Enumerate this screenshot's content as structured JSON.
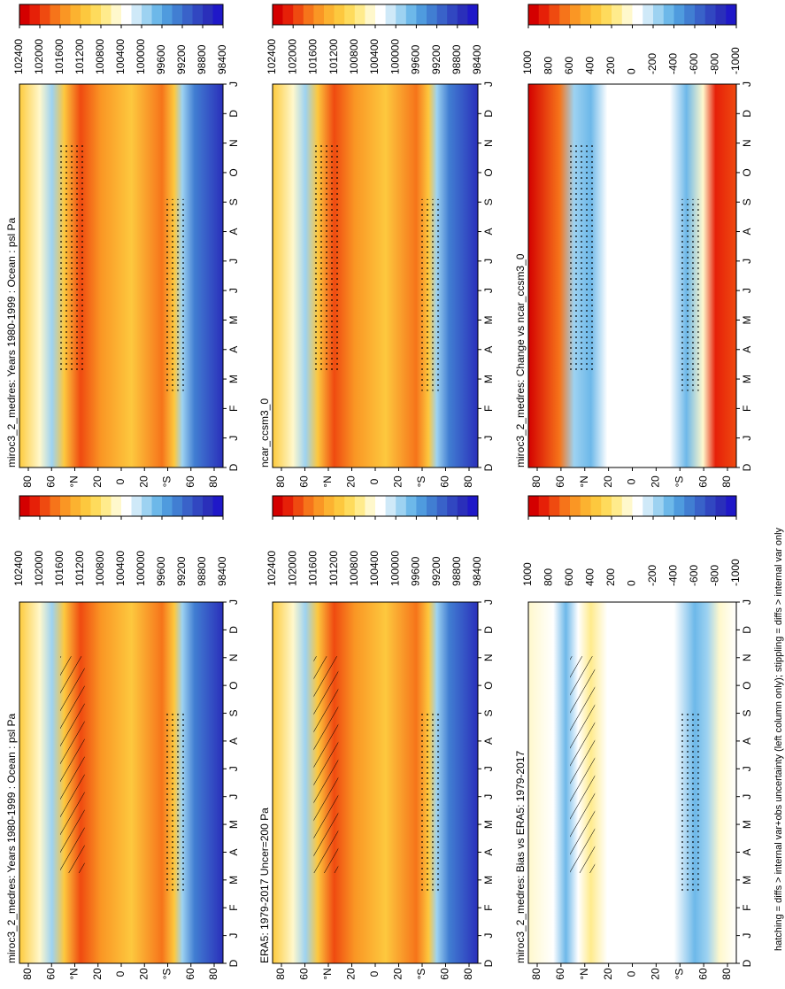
{
  "panels": [
    {
      "title": "miroc3_2_medres: Years 1980-1999 : Ocean : psl Pa",
      "colorbar_labels": [
        102400,
        102000,
        101600,
        101200,
        100800,
        100400,
        100000,
        99600,
        99200,
        98800,
        98400
      ]
    },
    {
      "title": "miroc3_2_medres: Years 1980-1999 : Ocean : psl Pa",
      "colorbar_labels": [
        102400,
        102000,
        101600,
        101200,
        100800,
        100400,
        100000,
        99600,
        99200,
        98800,
        98400
      ]
    },
    {
      "title": "ERA5: 1979-2017 Uncer=200 Pa",
      "colorbar_labels": [
        102400,
        102000,
        101600,
        101200,
        100800,
        100400,
        100000,
        99600,
        99200,
        98800,
        98400
      ]
    },
    {
      "title": "ncar_ccsm3_0",
      "colorbar_labels": [
        102400,
        102000,
        101600,
        101200,
        100800,
        100400,
        100000,
        99600,
        99200,
        98800,
        98400
      ]
    },
    {
      "title": "miroc3_2_medres: Bias vs ERA5: 1979-2017",
      "colorbar_labels": [
        1000,
        800,
        600,
        400,
        200,
        0,
        -200,
        -400,
        -600,
        -800,
        -1000
      ]
    },
    {
      "title": "miroc3_2_medres: Change vs ncar_ccsm3_0",
      "colorbar_labels": [
        1000,
        800,
        600,
        400,
        200,
        0,
        -200,
        -400,
        -600,
        -800,
        -1000
      ]
    }
  ],
  "lat_labels": [
    "80",
    "60",
    "°N",
    "20",
    "0",
    "20",
    "°S",
    "60",
    "80"
  ],
  "months": [
    "D",
    "J",
    "F",
    "M",
    "A",
    "M",
    "J",
    "J",
    "A",
    "S",
    "O",
    "N",
    "D",
    "J"
  ],
  "colorbar_colors": [
    "#d40000",
    "#e62008",
    "#ef4a10",
    "#f6741a",
    "#fa9624",
    "#fcb230",
    "#fdc83e",
    "#fedb5c",
    "#ffeb8c",
    "#fff8cc",
    "#ffffff",
    "#cfe9f8",
    "#9dd2f1",
    "#6db8e9",
    "#4f9bde",
    "#417ed2",
    "#3962c9",
    "#3147c1",
    "#2a2fba",
    "#1f18c8"
  ],
  "footer": "hatching = diffs > internal var+obs uncertainty (left column only); stippling = diffs > internal var only"
}
